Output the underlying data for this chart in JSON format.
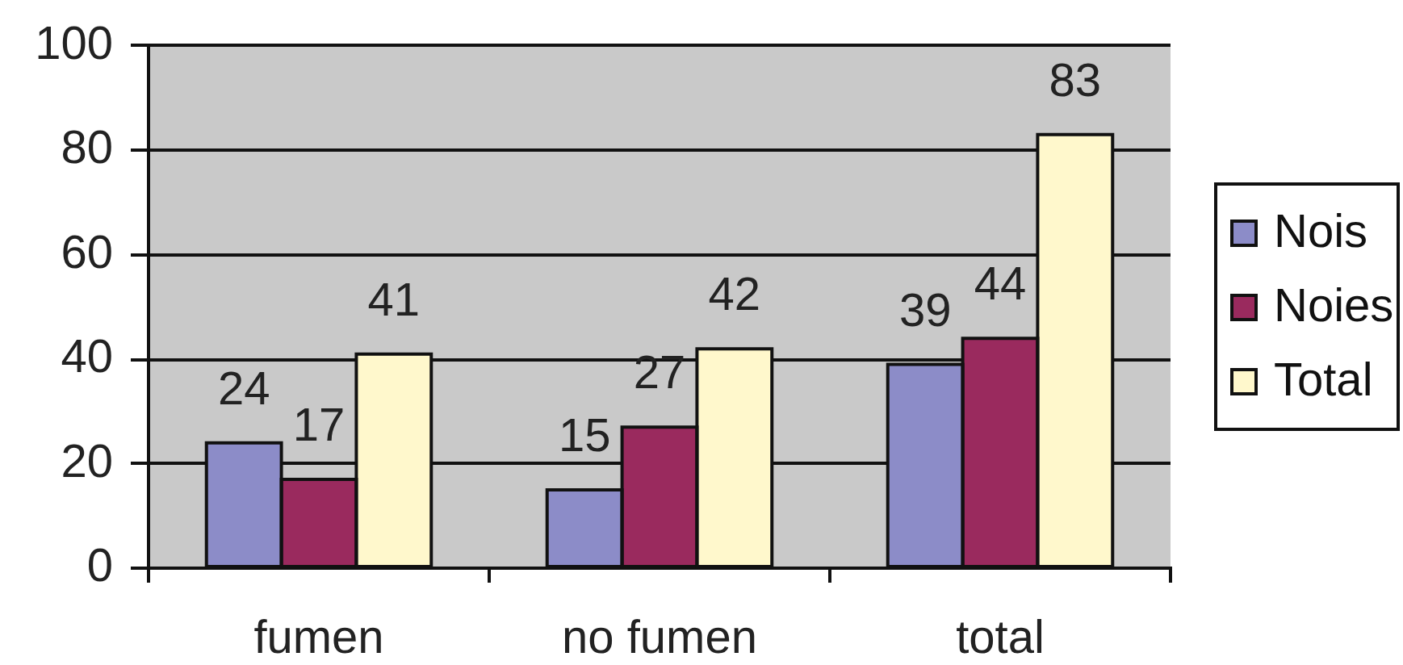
{
  "chart_data": {
    "type": "bar",
    "categories": [
      "fumen",
      "no fumen",
      "total"
    ],
    "series": [
      {
        "name": "Nois",
        "color": "#8c8cc8",
        "values": [
          24,
          15,
          39
        ]
      },
      {
        "name": "Noies",
        "color": "#9a2a5e",
        "values": [
          17,
          27,
          44
        ]
      },
      {
        "name": "Total",
        "color": "#fff8cc",
        "values": [
          41,
          42,
          83
        ]
      }
    ],
    "ylim": [
      0,
      100
    ],
    "yticks": [
      0,
      20,
      40,
      60,
      80,
      100
    ],
    "grid": "y",
    "legend": "right",
    "data_labels": true
  }
}
